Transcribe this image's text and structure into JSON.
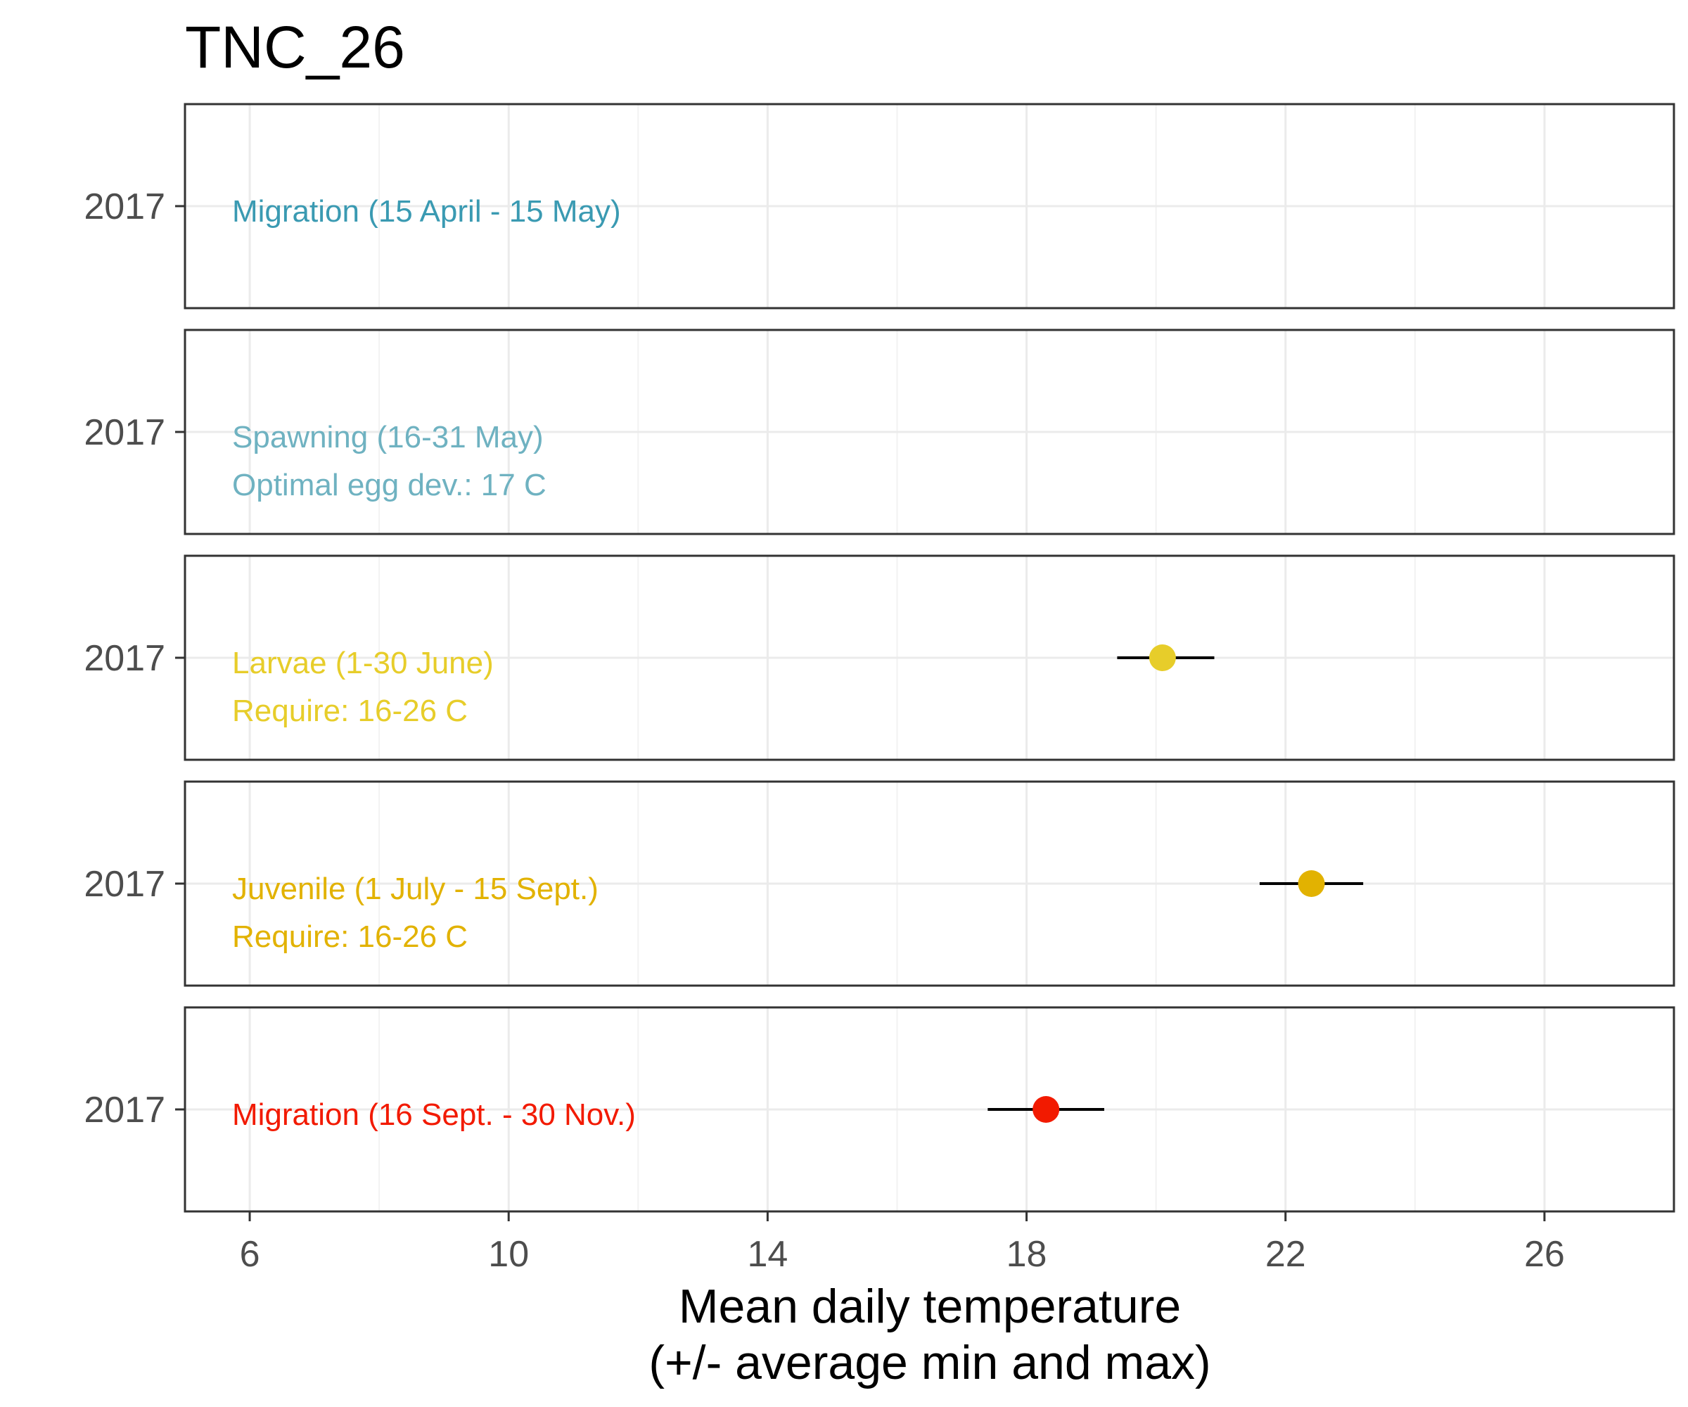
{
  "chart_data": {
    "type": "scatter",
    "title": "TNC_26",
    "xlabel": [
      "Mean daily temperature",
      "(+/- average min and max)"
    ],
    "ylabel": "",
    "xlim": [
      5,
      28
    ],
    "xticks": [
      "6",
      "10",
      "14",
      "18",
      "22",
      "26"
    ],
    "xtick_values": [
      6,
      10,
      14,
      18,
      22,
      26
    ],
    "grid": true,
    "facets": [
      {
        "y_label": "2017",
        "annotation": [
          "Migration (15 April - 15 May)"
        ],
        "color": "#3a9ab2",
        "point": null
      },
      {
        "y_label": "2017",
        "annotation": [
          "Spawning (16-31 May)",
          "Optimal egg dev.: 17 C"
        ],
        "color": "#6fb2c1",
        "point": null
      },
      {
        "y_label": "2017",
        "annotation": [
          "Larvae (1-30 June)",
          "Require: 16-26 C"
        ],
        "color": "#e7cd2a",
        "point": {
          "mean": 20.1,
          "min": 19.4,
          "max": 20.9
        }
      },
      {
        "y_label": "2017",
        "annotation": [
          "Juvenile (1 July - 15 Sept.)",
          "Require: 16-26 C"
        ],
        "color": "#e2b201",
        "point": {
          "mean": 22.4,
          "min": 21.6,
          "max": 23.2
        }
      },
      {
        "y_label": "2017",
        "annotation": [
          "Migration (16 Sept. - 30 Nov.)"
        ],
        "color": "#f21a00",
        "point": {
          "mean": 18.3,
          "min": 17.4,
          "max": 19.2
        }
      }
    ]
  }
}
